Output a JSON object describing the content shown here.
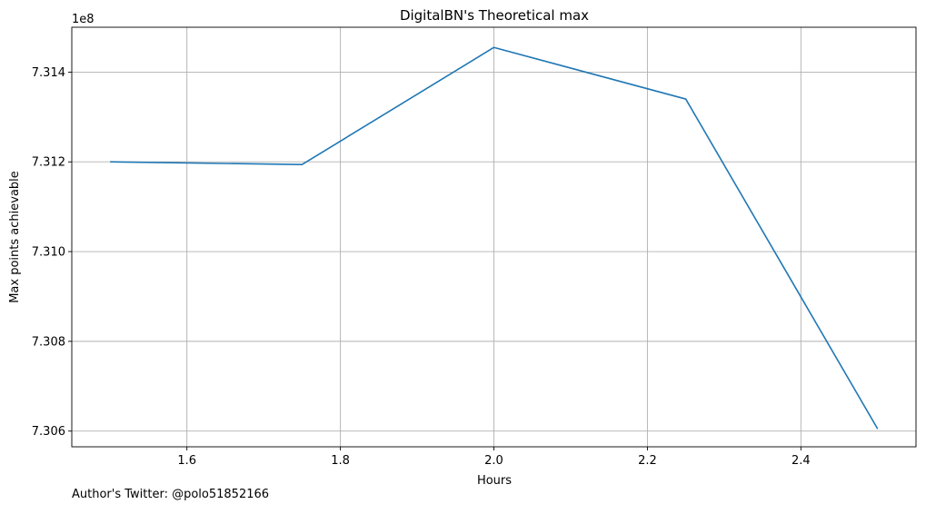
{
  "chart_data": {
    "type": "line",
    "title": "DigitalBN's Theoretical max",
    "xlabel": "Hours",
    "ylabel": "Max points achievable",
    "y_offset_label": "1e8",
    "x": [
      1.5,
      1.75,
      2.0,
      2.25,
      2.5
    ],
    "series": [
      {
        "values": [
          731200000,
          731194000,
          731455000,
          731340000,
          730605000
        ],
        "color": "#1f77b4"
      }
    ],
    "xlim": [
      1.45,
      2.55
    ],
    "ylim": [
      730565000,
      731500000
    ],
    "x_ticks": [
      1.6,
      1.8,
      2.0,
      2.2,
      2.4
    ],
    "x_tick_labels": [
      "1.6",
      "1.8",
      "2.0",
      "2.2",
      "2.4"
    ],
    "y_ticks": [
      730600000,
      730800000,
      731000000,
      731200000,
      731400000
    ],
    "y_tick_labels": [
      "7.306",
      "7.308",
      "7.310",
      "7.312",
      "7.314"
    ],
    "grid": true,
    "grid_color": "#b0b0b0"
  },
  "footer": {
    "credit": "Author's Twitter: @polo51852166"
  }
}
